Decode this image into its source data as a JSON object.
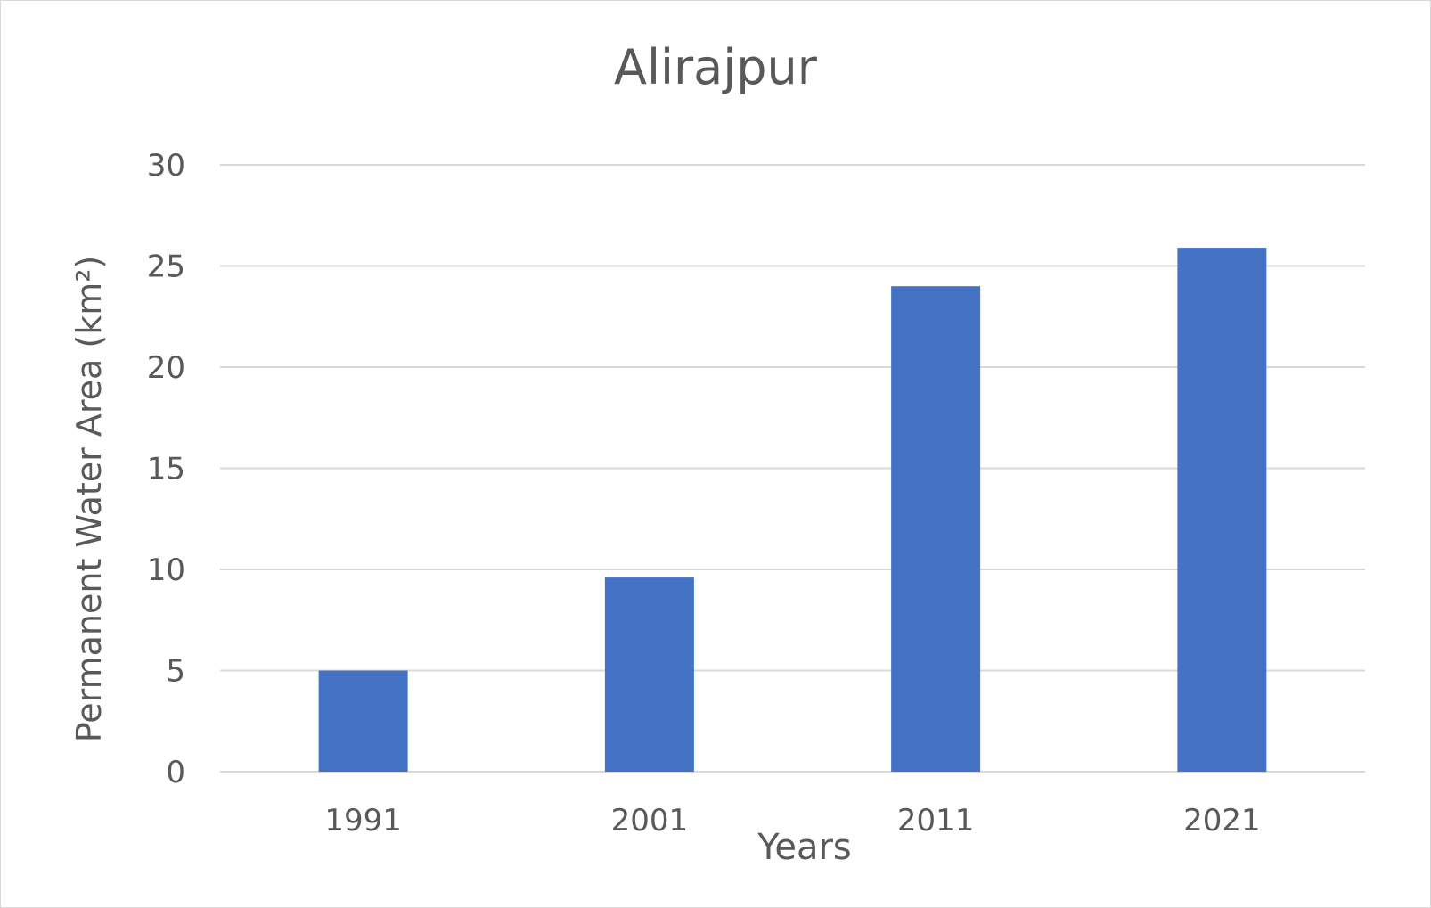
{
  "chart_data": {
    "type": "bar",
    "title": "Alirajpur",
    "xlabel": "Years",
    "ylabel": "Permanent Water Area (km²)",
    "categories": [
      "1991",
      "2001",
      "2011",
      "2021"
    ],
    "values": [
      5.0,
      9.6,
      24.0,
      25.9
    ],
    "ylim": [
      0,
      30
    ],
    "yticks": [
      0,
      5,
      10,
      15,
      20,
      25,
      30
    ],
    "grid": true,
    "bar_color": "#4472C4",
    "grid_color": "#d9d9d9",
    "text_color": "#595959"
  }
}
